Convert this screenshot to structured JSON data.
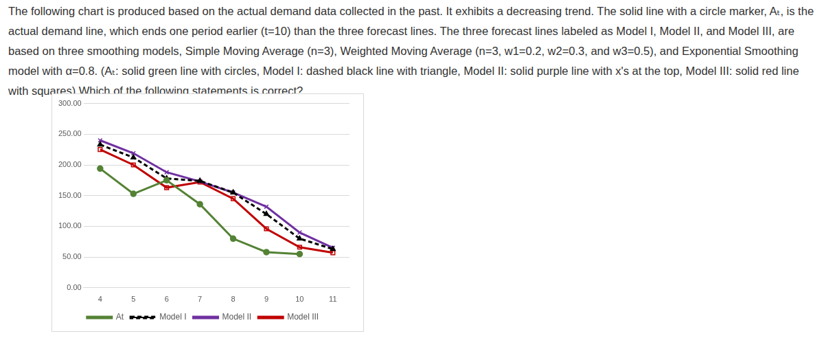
{
  "question": {
    "paragraphs": [
      "The following chart is produced based on the actual demand data collected in the past. It exhibits a decreasing trend. The solid line with a circle marker, Aₜ, is the actual demand line, which ends one period earlier (t=10) than the three forecast lines. The three forecast lines labeled as Model I, Model II, and Model III, are based on three smoothing models, Simple Moving Average (n=3), Weighted Moving Average (n=3, w1=0.2, w2=0.3, and w3=0.5), and Exponential Smoothing model with α=0.8. (Aₜ: solid green line with circles, Model I: dashed black line with triangle, Model II: solid purple line with x's at the top, Model III: solid red line with squares) Which of the following statements is correct?"
    ]
  },
  "chart_data": {
    "type": "line",
    "categories": [
      "4",
      "5",
      "6",
      "7",
      "8",
      "9",
      "10",
      "11"
    ],
    "series": [
      {
        "name": "At",
        "color": "#548235",
        "marker": "circle",
        "line_style": "solid",
        "values": [
          194,
          153,
          175,
          136,
          80,
          58,
          55,
          null
        ]
      },
      {
        "name": "Model I",
        "color": "#000000",
        "marker": "triangle",
        "line_style": "dashed",
        "values": [
          233,
          212,
          178,
          174,
          155,
          120,
          80,
          63
        ]
      },
      {
        "name": "Model II",
        "color": "#7030a0",
        "marker": "x",
        "line_style": "solid",
        "values": [
          240,
          219,
          188,
          173,
          155,
          132,
          90,
          65
        ]
      },
      {
        "name": "Model III",
        "color": "#c00000",
        "marker": "square",
        "line_style": "solid",
        "values": [
          225,
          200,
          163,
          172,
          145,
          96,
          66,
          57
        ]
      }
    ],
    "ylim": [
      0,
      300
    ],
    "yticks": [
      {
        "value": 0,
        "label": "0.00"
      },
      {
        "value": 50,
        "label": "50.00"
      },
      {
        "value": 100,
        "label": "100.00"
      },
      {
        "value": 150,
        "label": "150.00"
      },
      {
        "value": 200,
        "label": "200.00"
      },
      {
        "value": 250,
        "label": "250.00"
      },
      {
        "value": 300,
        "label": "300.00"
      }
    ],
    "grid": true,
    "legend": "bottom"
  }
}
